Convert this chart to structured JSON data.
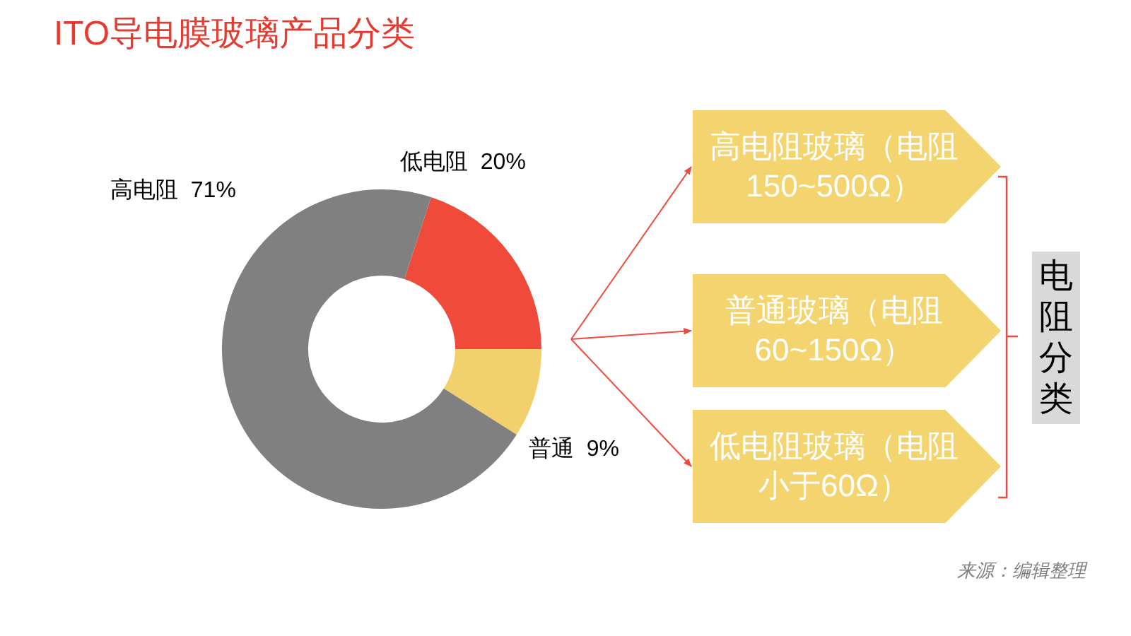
{
  "chart_data": {
    "type": "donut",
    "title": "ITO导电膜玻璃产品分类",
    "categories": [
      "低电阻",
      "普通",
      "高电阻"
    ],
    "values": [
      20,
      9,
      71
    ],
    "value_labels": [
      "20%",
      "9%",
      "71%"
    ],
    "colors": [
      "#f04b3a",
      "#f2d06b",
      "#808080"
    ],
    "annotations": [
      "高电阻玻璃（电阻150~500Ω）",
      "普通玻璃（电阻60~150Ω）",
      "低电阻玻璃（电阻小于60Ω）",
      "电阻分类",
      "来源：编辑整理"
    ]
  }
}
